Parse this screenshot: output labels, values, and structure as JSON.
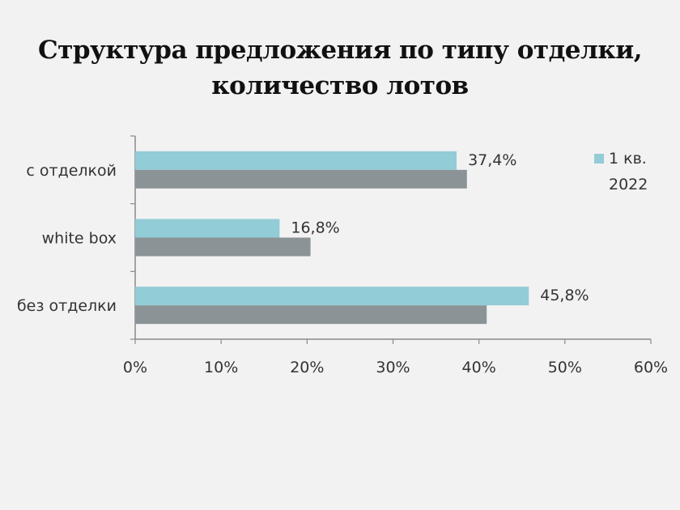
{
  "title_line1": "Структура предложения по типу отделки,",
  "title_line2": "количество лотов",
  "chart_data": {
    "type": "bar",
    "orientation": "horizontal",
    "categories": [
      "с отделкой",
      "white box",
      "без отделки"
    ],
    "series": [
      {
        "name": "1 кв. 2022",
        "color": "#92ccd6",
        "values": [
          37.4,
          16.8,
          45.8
        ],
        "labels": [
          "37,4%",
          "16,8%",
          "45,8%"
        ]
      },
      {
        "color": "#8c9397",
        "values": [
          38.6,
          20.4,
          40.9
        ]
      }
    ],
    "legend": {
      "line1": "1 кв.",
      "line2": "2022",
      "position": "top-right"
    },
    "xlim": [
      0,
      60
    ],
    "xticks": [
      "0%",
      "10%",
      "20%",
      "30%",
      "40%",
      "50%",
      "60%"
    ],
    "grid": false
  }
}
